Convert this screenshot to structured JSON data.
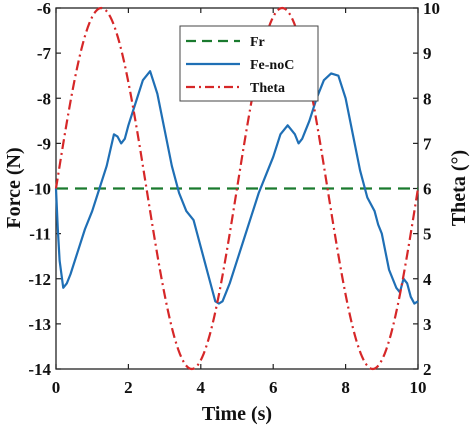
{
  "chart_data": {
    "type": "line",
    "title": "",
    "xlabel": "Time (s)",
    "ylabel_left": "Force (N)",
    "ylabel_right": "Theta (°)",
    "xlim": [
      0,
      10
    ],
    "ylim_left": [
      -14,
      -6
    ],
    "ylim_right": [
      2,
      10
    ],
    "x_ticks": [
      "0",
      "2",
      "4",
      "6",
      "8",
      "10"
    ],
    "y_ticks_left": [
      "-14",
      "-13",
      "-12",
      "-11",
      "-10",
      "-9",
      "-8",
      "-7",
      "-6"
    ],
    "y_ticks_right": [
      "2",
      "3",
      "4",
      "5",
      "6",
      "7",
      "8",
      "9",
      "10"
    ],
    "grid": false,
    "legend_position": "top-center",
    "series": [
      {
        "name": "Fr",
        "axis": "left",
        "color": "#1a7a2e",
        "style": "dashed",
        "x": [
          0,
          10
        ],
        "y": [
          -10,
          -10
        ]
      },
      {
        "name": "Fe-noC",
        "axis": "left",
        "color": "#1f6fb5",
        "style": "solid",
        "x": [
          0,
          0.05,
          0.1,
          0.2,
          0.3,
          0.4,
          0.6,
          0.8,
          1.0,
          1.2,
          1.4,
          1.6,
          1.7,
          1.8,
          1.9,
          2.0,
          2.2,
          2.4,
          2.6,
          2.8,
          3.0,
          3.2,
          3.4,
          3.6,
          3.8,
          3.9,
          4.0,
          4.1,
          4.2,
          4.3,
          4.4,
          4.5,
          4.6,
          4.7,
          4.8,
          5.0,
          5.2,
          5.4,
          5.6,
          5.8,
          6.0,
          6.2,
          6.4,
          6.6,
          6.7,
          6.8,
          6.9,
          7.0,
          7.2,
          7.4,
          7.6,
          7.8,
          8.0,
          8.2,
          8.4,
          8.6,
          8.8,
          8.9,
          9.0,
          9.1,
          9.2,
          9.3,
          9.4,
          9.5,
          9.6,
          9.7,
          9.8,
          9.9,
          10.0
        ],
        "y": [
          -10.0,
          -10.9,
          -11.6,
          -12.2,
          -12.1,
          -11.9,
          -11.4,
          -10.9,
          -10.5,
          -10.0,
          -9.5,
          -8.8,
          -8.85,
          -9.0,
          -8.9,
          -8.6,
          -8.1,
          -7.6,
          -7.4,
          -7.9,
          -8.7,
          -9.5,
          -10.1,
          -10.5,
          -10.7,
          -11.0,
          -11.3,
          -11.6,
          -11.9,
          -12.2,
          -12.5,
          -12.55,
          -12.5,
          -12.3,
          -12.1,
          -11.6,
          -11.1,
          -10.6,
          -10.1,
          -9.7,
          -9.3,
          -8.8,
          -8.6,
          -8.8,
          -9.0,
          -8.9,
          -8.7,
          -8.5,
          -8.0,
          -7.6,
          -7.45,
          -7.5,
          -8.0,
          -8.8,
          -9.6,
          -10.2,
          -10.5,
          -10.8,
          -11.0,
          -11.4,
          -11.8,
          -12.0,
          -12.2,
          -12.3,
          -12.0,
          -12.1,
          -12.4,
          -12.55,
          -12.5
        ]
      },
      {
        "name": "Theta",
        "axis": "right",
        "color": "#d62728",
        "style": "dashdot",
        "function": "sine",
        "mean": 6,
        "amplitude": 4,
        "period": 5,
        "x_peaks": [
          1.25,
          6.25
        ],
        "x_troughs": [
          3.75,
          8.75
        ]
      }
    ]
  }
}
